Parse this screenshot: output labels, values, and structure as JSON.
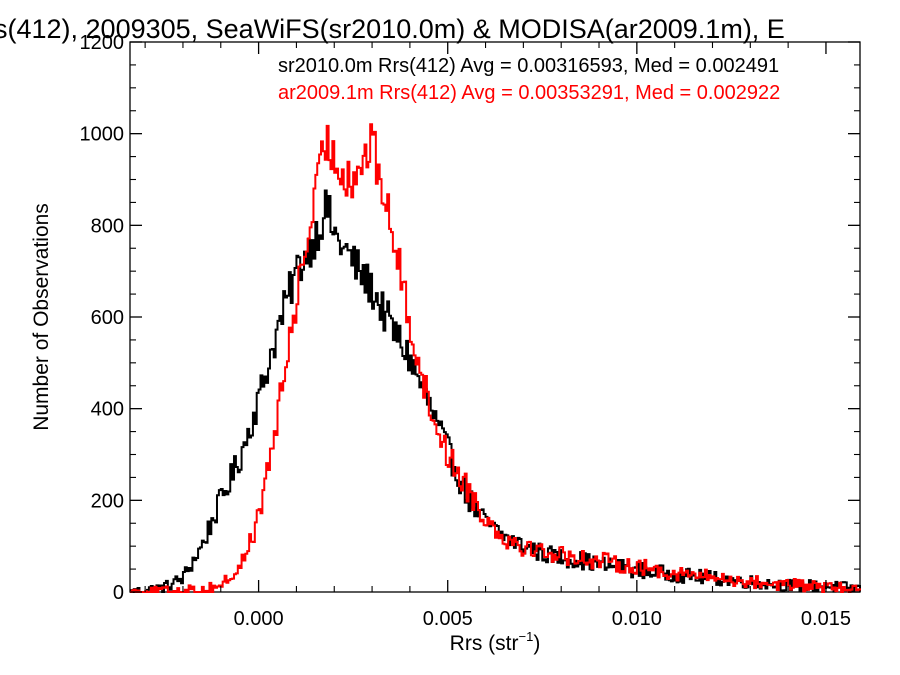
{
  "chart_data": {
    "type": "line",
    "title": "s(412), 2009305, SeaWiFS(sr2010.0m) & MODISA(ar2009.1m), E",
    "xlabel": "Rrs (str",
    "xlabel_sup": "−1",
    "xlabel_close": ")",
    "ylabel": "Number of Observations",
    "xlim": [
      -0.0034,
      0.0159
    ],
    "ylim": [
      0,
      1200
    ],
    "xticks": [
      0.0,
      0.005,
      0.01,
      0.015
    ],
    "xtick_labels": [
      "0.000",
      "0.005",
      "0.010",
      "0.015"
    ],
    "yticks": [
      0,
      200,
      400,
      600,
      800,
      1000,
      1200
    ],
    "ytick_labels": [
      "0",
      "200",
      "400",
      "600",
      "800",
      "1000",
      "1200"
    ],
    "grid": false,
    "legend_position": "top-right",
    "series": [
      {
        "name": "sr2010.0m",
        "legend_text": "sr2010.0m Rrs(412) Avg = 0.00316593, Med = 0.002491",
        "color": "#000000",
        "step": "mid",
        "x": [
          -0.0034,
          -0.0025,
          -0.002,
          -0.0015,
          -0.001,
          -0.0005,
          0.0,
          0.0005,
          0.001,
          0.0015,
          0.0018,
          0.002,
          0.0025,
          0.003,
          0.0035,
          0.004,
          0.0045,
          0.005,
          0.0055,
          0.006,
          0.0065,
          0.007,
          0.0075,
          0.008,
          0.0085,
          0.009,
          0.0095,
          0.01,
          0.011,
          0.012,
          0.013,
          0.014,
          0.015,
          0.0159
        ],
        "y": [
          0,
          10,
          30,
          100,
          200,
          290,
          420,
          570,
          700,
          775,
          840,
          780,
          720,
          660,
          580,
          510,
          410,
          310,
          210,
          150,
          120,
          100,
          85,
          75,
          70,
          60,
          55,
          48,
          38,
          30,
          22,
          15,
          12,
          8
        ]
      },
      {
        "name": "ar2009.1m",
        "legend_text": "ar2009.1m Rrs(412) Avg = 0.00353291, Med = 0.002922",
        "color": "#ff0000",
        "step": "mid",
        "x": [
          -0.0034,
          -0.0015,
          -0.001,
          -0.0005,
          0.0,
          0.0005,
          0.001,
          0.0015,
          0.0018,
          0.002,
          0.0025,
          0.003,
          0.0035,
          0.004,
          0.0045,
          0.005,
          0.0055,
          0.006,
          0.0065,
          0.007,
          0.0075,
          0.008,
          0.0085,
          0.009,
          0.0095,
          0.01,
          0.011,
          0.012,
          0.013,
          0.014,
          0.015,
          0.0159
        ],
        "y": [
          0,
          5,
          15,
          50,
          160,
          380,
          640,
          860,
          990,
          940,
          900,
          980,
          800,
          590,
          410,
          300,
          230,
          160,
          120,
          100,
          90,
          80,
          75,
          68,
          62,
          55,
          42,
          32,
          22,
          16,
          10,
          6
        ]
      }
    ]
  }
}
